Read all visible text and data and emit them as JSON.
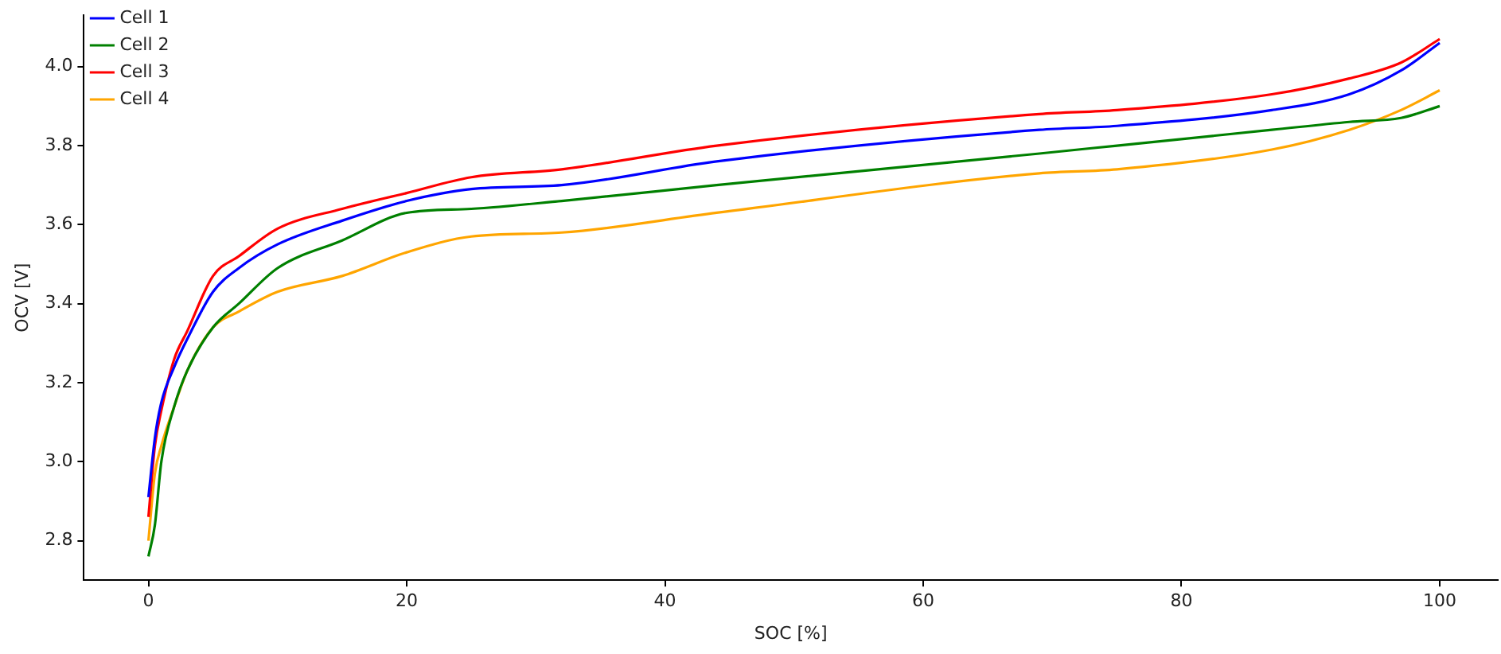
{
  "chart_data": {
    "type": "line",
    "xlabel": "SOC [%]",
    "ylabel": "OCV [V]",
    "x": [
      0,
      0.5,
      1,
      2,
      3,
      5,
      7,
      10,
      15,
      20,
      25,
      32,
      44,
      69,
      75,
      87,
      93,
      97,
      100
    ],
    "series": [
      {
        "name": "Cell 1",
        "color": "#0000ff",
        "values": [
          2.91,
          3.06,
          3.15,
          3.24,
          3.31,
          3.43,
          3.49,
          3.55,
          3.61,
          3.66,
          3.69,
          3.7,
          3.76,
          3.84,
          3.85,
          3.89,
          3.93,
          3.99,
          4.06
        ]
      },
      {
        "name": "Cell 2",
        "color": "#008000",
        "values": [
          2.76,
          2.84,
          3.0,
          3.14,
          3.23,
          3.34,
          3.4,
          3.49,
          3.56,
          3.63,
          3.64,
          3.66,
          3.7,
          3.78,
          3.8,
          3.84,
          3.86,
          3.87,
          3.9
        ]
      },
      {
        "name": "Cell 3",
        "color": "#ff0000",
        "values": [
          2.86,
          3.04,
          3.13,
          3.26,
          3.33,
          3.47,
          3.52,
          3.59,
          3.64,
          3.68,
          3.72,
          3.74,
          3.8,
          3.88,
          3.89,
          3.93,
          3.97,
          4.01,
          4.07
        ]
      },
      {
        "name": "Cell 4",
        "color": "#ffa500",
        "values": [
          2.8,
          2.97,
          3.04,
          3.14,
          3.23,
          3.34,
          3.38,
          3.43,
          3.47,
          3.53,
          3.57,
          3.58,
          3.63,
          3.73,
          3.74,
          3.79,
          3.84,
          3.89,
          3.94
        ]
      }
    ],
    "xlim": [
      -5,
      104.5
    ],
    "xticks": [
      0,
      20,
      40,
      60,
      80,
      100
    ],
    "ylim": [
      2.7,
      4.13
    ],
    "yticks": [
      2.8,
      {
        "value": 3,
        "label": "3.0"
      },
      3.2,
      3.4,
      3.6,
      3.8,
      {
        "value": 4,
        "label": "4.0"
      }
    ],
    "legend": "top left",
    "grid": false,
    "marker": "none",
    "line_style": "solid"
  }
}
